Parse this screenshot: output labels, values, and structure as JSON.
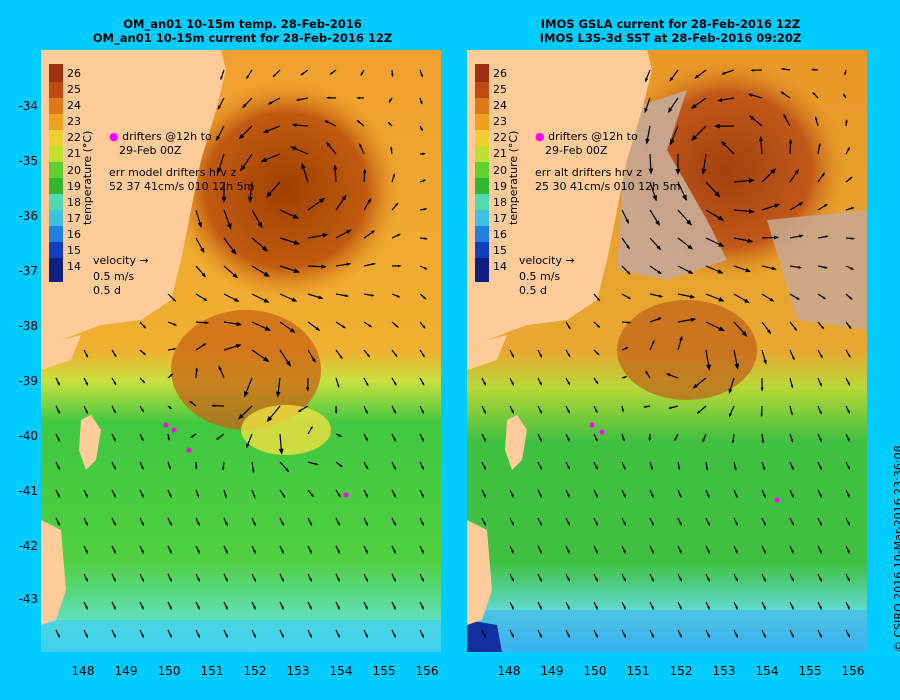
{
  "left_panel": {
    "title_line1": "OM_an01 10-15m temp. 28-Feb-2016",
    "title_line2": "OM_an01 10-15m current for 28-Feb-2016 12Z",
    "drifter_legend_line1": "drifters @12h to",
    "drifter_legend_line2": "29-Feb 00Z",
    "err_label": "err model drifters hrv z",
    "err_values": "52 37 41cm/s 010 12h 5m",
    "velocity_label": "velocity",
    "velocity_scale": "0.5 m/s",
    "velocity_time": "0.5 d"
  },
  "right_panel": {
    "title_line1": "IMOS GSLA current for 28-Feb-2016 12Z",
    "title_line2": "IMOS L3S-3d SST at 28-Feb-2016 09:20Z",
    "drifter_legend_line1": "drifters @12h to",
    "drifter_legend_line2": "29-Feb 00Z",
    "err_label": "err alt drifters hrv z",
    "err_values": "25 30 41cm/s 010 12h 5m",
    "velocity_label": "velocity",
    "velocity_scale": "0.5 m/s",
    "velocity_time": "0.5 d"
  },
  "colorbar": {
    "label": "temperature (°C)",
    "ticks": [
      "26",
      "25",
      "24",
      "23",
      "22",
      "21",
      "20",
      "19",
      "18",
      "17",
      "16",
      "15",
      "14"
    ]
  },
  "y_ticks": [
    "-34",
    "-35",
    "-36",
    "-37",
    "-38",
    "-39",
    "-40",
    "-41",
    "-42",
    "-43"
  ],
  "x_ticks": [
    "148",
    "149",
    "150",
    "151",
    "152",
    "153",
    "154",
    "155",
    "156"
  ],
  "copyright": "© CSIRO 2016   10-Mar-2016 23:36:08",
  "colors": {
    "background": "#00ccff",
    "land": "#ffcc99",
    "warm": "#b34700",
    "orange": "#f0a020",
    "yellow": "#e8e830",
    "green": "#40c040",
    "cyan": "#60e0e0",
    "no_data": "#c8a890",
    "drifter": "#ff00ff"
  },
  "drifter_icon": "drifter-dot-icon",
  "arrow_icon": "current-arrow-icon"
}
